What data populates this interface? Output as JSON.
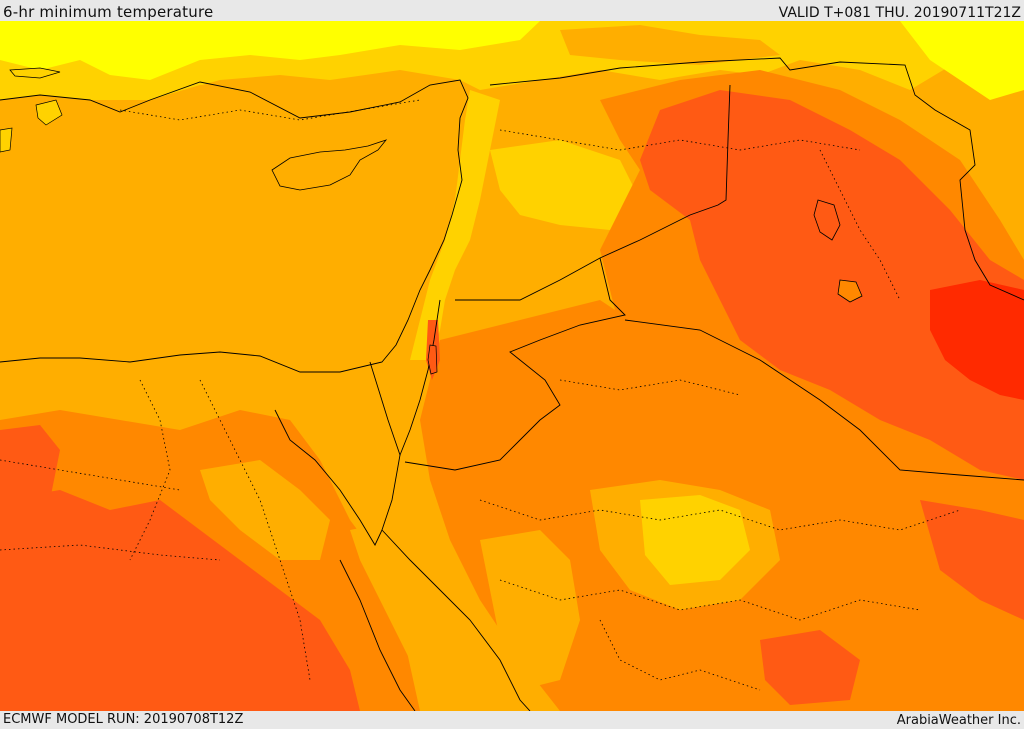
{
  "header": {
    "title": "6-hr minimum temperature",
    "valid": "VALID T+081 THU. 20190711T21Z"
  },
  "footer": {
    "model_run": "ECMWF MODEL RUN: 20190708T12Z",
    "credit": "ArabiaWeather Inc."
  },
  "colors": {
    "yellow_bright": "#ffff00",
    "yellow_gold": "#ffd200",
    "orange_light": "#ffae00",
    "orange_mid": "#ff8800",
    "orange_dark": "#ff5a14",
    "red": "#ff2a00",
    "land_pale": "#ffc34a",
    "border_line": "#000000"
  }
}
